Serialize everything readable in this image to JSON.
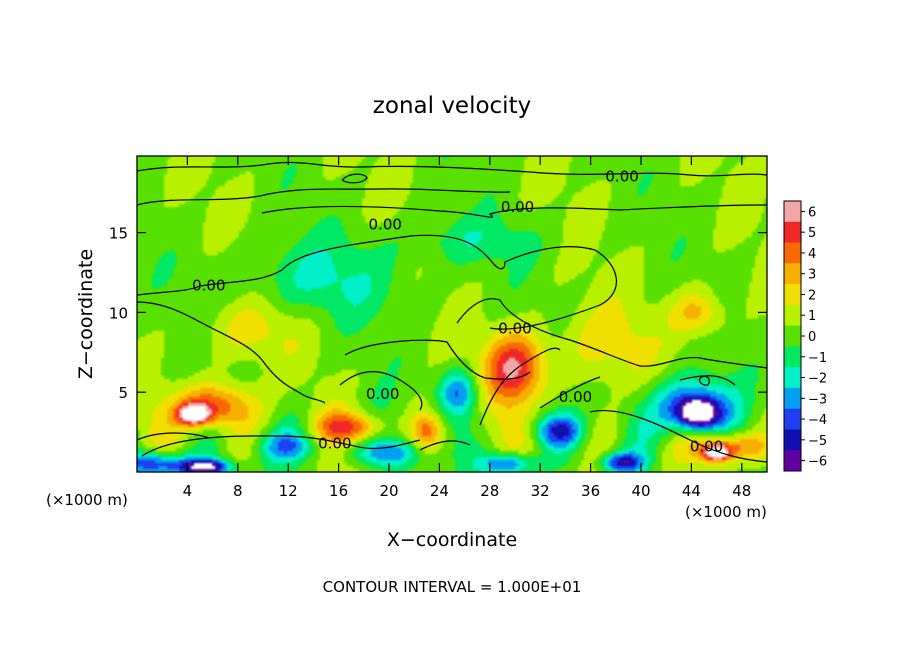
{
  "chart_data": {
    "type": "heatmap",
    "title": "zonal velocity",
    "xlabel": "X−coordinate",
    "ylabel": "Z−coordinate",
    "x_unit_left": "(×1000 m)",
    "x_unit_right": "(×1000 m)",
    "x_ticks": [
      4,
      8,
      12,
      16,
      20,
      24,
      28,
      32,
      36,
      40,
      44,
      48
    ],
    "y_ticks": [
      5,
      10,
      15
    ],
    "xlim": [
      0,
      50
    ],
    "ylim": [
      0,
      19.8
    ],
    "colorbar": {
      "ticks": [
        6,
        5,
        4,
        3,
        2,
        1,
        0,
        -1,
        -2,
        -3,
        -4,
        -5,
        -6
      ],
      "tick_labels": [
        "6",
        "5",
        "4",
        "3",
        "2",
        "1",
        "0",
        "−1",
        "−2",
        "−3",
        "−4",
        "−5",
        "−6"
      ],
      "colors": [
        "#f4a6a6",
        "#f02828",
        "#f86a00",
        "#f8b000",
        "#f0e000",
        "#b8f000",
        "#58e000",
        "#00e864",
        "#00f0c8",
        "#00a0f0",
        "#1e40f0",
        "#1010b0",
        "#6000a0"
      ]
    },
    "contour_labels": [
      {
        "text": "0.00",
        "x": 38.5,
        "z": 18.5
      },
      {
        "text": "0.00",
        "x": 30.2,
        "z": 16.6
      },
      {
        "text": "0.00",
        "x": 19.7,
        "z": 15.5
      },
      {
        "text": "0.00",
        "x": 5.7,
        "z": 11.7
      },
      {
        "text": "0.00",
        "x": 30.0,
        "z": 9.0
      },
      {
        "text": "0.00",
        "x": 19.5,
        "z": 4.9
      },
      {
        "text": "0.00",
        "x": 34.8,
        "z": 4.7
      },
      {
        "text": "0.00",
        "x": 15.7,
        "z": 1.8
      },
      {
        "text": "0.00",
        "x": 45.2,
        "z": 1.6
      }
    ],
    "features": [
      {
        "x": 30,
        "z": 6.5,
        "value": 5.2,
        "sx": 2.4,
        "sz": 2.2
      },
      {
        "x": 6,
        "z": 4.1,
        "value": 4.8,
        "sx": 3.0,
        "sz": 1.4
      },
      {
        "x": 4.5,
        "z": 3.6,
        "value": 6.8,
        "sx": 1.2,
        "sz": 0.6
      },
      {
        "x": 17,
        "z": 2.8,
        "value": 4.0,
        "sx": 2.5,
        "sz": 0.9
      },
      {
        "x": 23,
        "z": 2.5,
        "value": 3.5,
        "sx": 1.2,
        "sz": 1.2
      },
      {
        "x": 44.5,
        "z": 10,
        "value": 2.8,
        "sx": 2.0,
        "sz": 1.4
      },
      {
        "x": 47,
        "z": 1.6,
        "value": 4.2,
        "sx": 3.0,
        "sz": 0.9
      },
      {
        "x": 46,
        "z": 1.2,
        "value": 6.8,
        "sx": 1.0,
        "sz": 0.5
      },
      {
        "x": 1.5,
        "z": 0.5,
        "value": -5.5,
        "sx": 2.5,
        "sz": 0.8
      },
      {
        "x": 5.5,
        "z": 0.3,
        "value": -6.9,
        "sx": 2.0,
        "sz": 0.5
      },
      {
        "x": 44,
        "z": 4.0,
        "value": -5.5,
        "sx": 3.0,
        "sz": 1.8
      },
      {
        "x": 44.5,
        "z": 3.7,
        "value": -6.9,
        "sx": 1.4,
        "sz": 0.8
      },
      {
        "x": 25.5,
        "z": 5.0,
        "value": -3.6,
        "sx": 1.5,
        "sz": 1.4
      },
      {
        "x": 33.5,
        "z": 2.6,
        "value": -4.4,
        "sx": 1.8,
        "sz": 1.0
      },
      {
        "x": 29.5,
        "z": 0.5,
        "value": -5.0,
        "sx": 2.0,
        "sz": 0.7
      },
      {
        "x": 38.5,
        "z": 0.6,
        "value": -5.0,
        "sx": 1.6,
        "sz": 0.6
      },
      {
        "x": 20,
        "z": 1.2,
        "value": -3.2,
        "sx": 3.0,
        "sz": 0.9
      },
      {
        "x": 12,
        "z": 1.6,
        "value": -2.8,
        "sx": 2.5,
        "sz": 0.9
      },
      {
        "x": 14,
        "z": 12,
        "value": -1.8,
        "sx": 7.0,
        "sz": 2.5
      },
      {
        "x": 26,
        "z": 14.5,
        "value": -1.3,
        "sx": 6.0,
        "sz": 1.5
      },
      {
        "x": 9,
        "z": 9,
        "value": 1.6,
        "sx": 4.0,
        "sz": 2.0
      },
      {
        "x": 37,
        "z": 8,
        "value": 1.6,
        "sx": 4.0,
        "sz": 2.5
      }
    ],
    "grid": false
  },
  "footer": {
    "contour_interval": "CONTOUR INTERVAL = 1.000E+01"
  }
}
